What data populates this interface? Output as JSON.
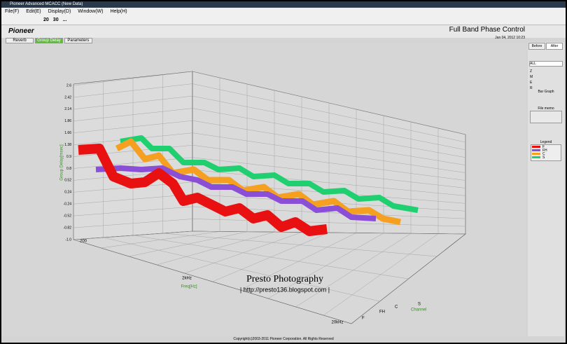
{
  "window": {
    "title": "Pioneer Advanced MCACC (New Data)"
  },
  "menu": [
    "File(F)",
    "Edit(E)",
    "Display(D)",
    "Window(W)",
    "Help(H)"
  ],
  "toolbar": [
    "20",
    "30",
    "..."
  ],
  "header": {
    "logo": "Pioneer",
    "app_title": "Full Band Phase Control",
    "date": "Jan 04, 2012 10:23"
  },
  "tabs": [
    "Reverb",
    "Group Delay",
    "Parameters"
  ],
  "plot": {
    "y_label": "Group Delay[msec]",
    "y_ticks": [
      "2.6",
      "2.42",
      "2.14",
      "1.86",
      "1.66",
      "1.38",
      "0.9",
      "0.8",
      "0.52",
      "0.24",
      "-0.24",
      "-0.52",
      "-0.82",
      "-1.0"
    ],
    "x_label": "Freq[Hz]",
    "x_ticks": [
      "200",
      "2kHz",
      "20kHz"
    ],
    "channel_label": "Channel",
    "channel_ticks": [
      "F",
      "FH",
      "C",
      "S"
    ]
  },
  "side": {
    "before": "Before",
    "after": "After",
    "select": "ALL",
    "rows": [
      "Z",
      "M",
      "E",
      "R"
    ],
    "bar_graph": "Bar Graph",
    "file_memo": "File memo",
    "legend_title": "Legend",
    "legend": [
      {
        "name": "F",
        "color": "#e81010"
      },
      {
        "name": "FH",
        "color": "#8a4fd6"
      },
      {
        "name": "C",
        "color": "#f5a020"
      },
      {
        "name": "S",
        "color": "#20d070"
      }
    ]
  },
  "watermark": {
    "title": "Presto Photography",
    "url": "| http://presto136.blogspot.com |"
  },
  "footer": "Copyright(c)2003-2011 Pioneer Corporation. All Rights Reserved"
}
